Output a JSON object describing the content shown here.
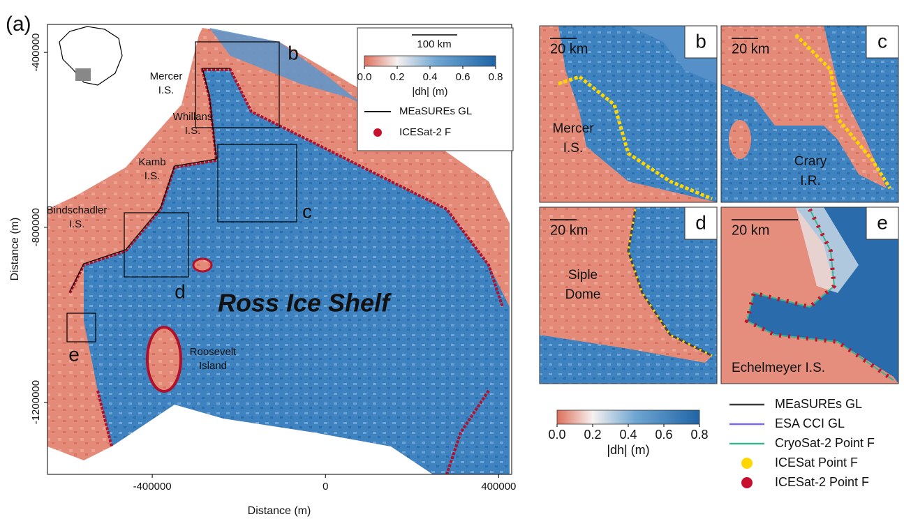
{
  "figure_label": "(a)",
  "panel_a": {
    "xlabel": "Distance (m)",
    "ylabel": "Distance (m)",
    "xlim": [
      -642000,
      430000
    ],
    "ylim": [
      -1365000,
      -336000
    ],
    "xticks": [
      -400000,
      0,
      400000
    ],
    "yticks": [
      -400000,
      -800000,
      -1200000
    ],
    "place_names": [
      [
        "Mercer",
        "I.S."
      ],
      [
        "Whillans",
        "I.S."
      ],
      [
        "Kamb",
        "I.S."
      ],
      [
        "Bindschadler",
        "I.S."
      ],
      [
        "Roosevelt",
        "Island"
      ]
    ],
    "shelf_label": "Ross Ice Shelf",
    "box_labels": [
      "b",
      "c",
      "d",
      "e"
    ],
    "legend": {
      "scale_bar": "100 km",
      "colorbar": {
        "clim": [
          0,
          0.8
        ],
        "ticks": [
          {
            "value": 0,
            "label": "0.0"
          },
          {
            "value": 0.2,
            "label": "0.2"
          },
          {
            "value": 0.4,
            "label": "0.4"
          },
          {
            "value": 0.6,
            "label": "0.6"
          },
          {
            "value": 0.8,
            "label": "0.8"
          }
        ],
        "label": "|dh| (m)"
      },
      "entries": [
        {
          "name": "MEaSUREs GL",
          "color": "#000000",
          "marker": "line"
        },
        {
          "name": "ICESat-2 F",
          "color": "#c8102e",
          "marker": "dot"
        }
      ]
    }
  },
  "insets": [
    {
      "letter": "b",
      "scale_bar": "20 km",
      "place_name": [
        "Mercer",
        "I.S."
      ]
    },
    {
      "letter": "c",
      "scale_bar": "20 km",
      "place_name": [
        "Crary",
        "I.R."
      ]
    },
    {
      "letter": "d",
      "scale_bar": "20 km",
      "place_name": [
        "Siple",
        "Dome"
      ]
    },
    {
      "letter": "e",
      "scale_bar": "20 km",
      "place_name": [
        "Echelmeyer I.S."
      ]
    }
  ],
  "shared_legend": {
    "colorbar": {
      "clim": [
        0,
        0.8
      ],
      "ticks": [
        {
          "value": 0,
          "label": "0.0"
        },
        {
          "value": 0.2,
          "label": "0.2"
        },
        {
          "value": 0.4,
          "label": "0.4"
        },
        {
          "value": 0.6,
          "label": "0.6"
        },
        {
          "value": 0.8,
          "label": "0.8"
        }
      ],
      "label": "|dh| (m)"
    },
    "entries": [
      {
        "name": "MEaSUREs GL",
        "color": "#3a3a3a",
        "marker": "line"
      },
      {
        "name": "ESA CCI GL",
        "color": "#7b68ee",
        "marker": "line"
      },
      {
        "name": "CryoSat-2 Point F",
        "color": "#3cb38a",
        "marker": "line"
      },
      {
        "name": "ICESat Point F",
        "color": "#ffd700",
        "marker": "dot"
      },
      {
        "name": "ICESat-2 Point F",
        "color": "#c8102e",
        "marker": "dot"
      }
    ]
  }
}
